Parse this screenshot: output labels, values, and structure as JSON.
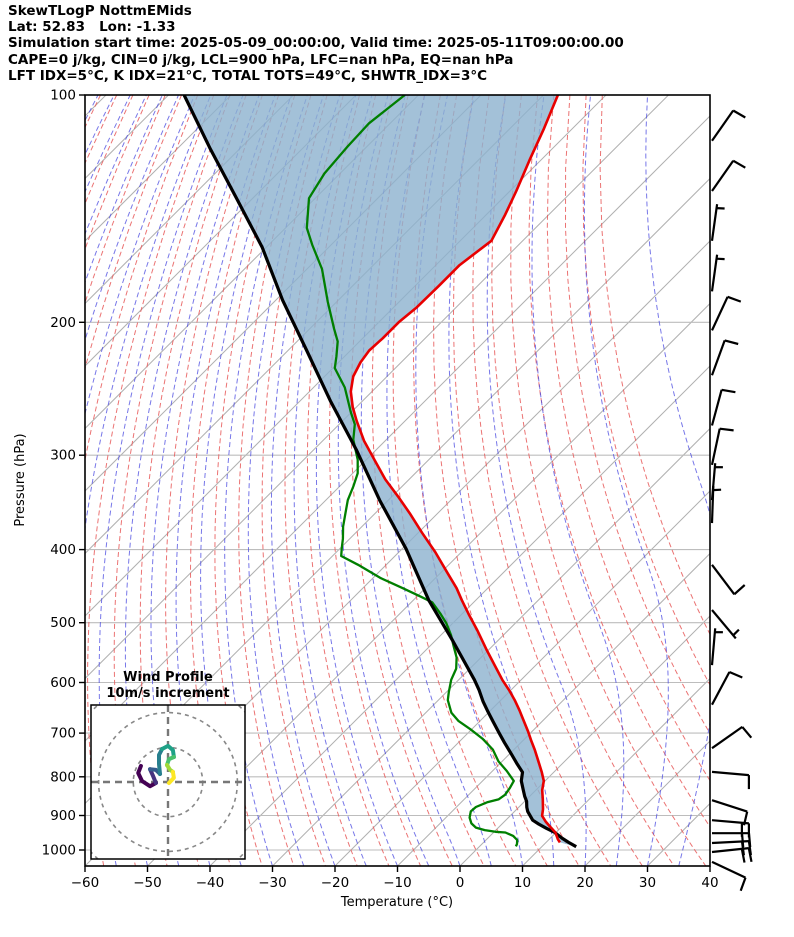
{
  "chart_data": {
    "type": "skewt_logp",
    "header": [
      "SkewTLogP NottmEMids",
      "Lat: 52.83   Lon: -1.33",
      "Simulation start time: 2025-05-09_00:00:00, Valid time: 2025-05-11T09:00:00.00",
      "CAPE=0 j/kg, CIN=0 j/kg, LCL=900 hPa, LFC=nan hPa, EQ=nan hPa",
      "LFT IDX=5°C, K IDX=21°C, TOTAL TOTS=49°C, SHWTR_IDX=3°C"
    ],
    "xlabel": "Temperature (°C)",
    "ylabel": "Pressure (hPa)",
    "x_range": [
      -60,
      40
    ],
    "p_range": [
      100,
      1050
    ],
    "x_ticks": [
      -60,
      -50,
      -40,
      -30,
      -20,
      -10,
      0,
      10,
      20,
      30,
      40
    ],
    "p_ticks": [
      100,
      200,
      300,
      400,
      500,
      600,
      700,
      800,
      900,
      1000
    ],
    "grid": {
      "isotherm_color": "#b0b0b0",
      "isotherm_step_c": 10,
      "pressure_line_color": "#bdbdbd",
      "dry_adiabat_color": "#e85b5b",
      "dry_adiabat_step_c": 5,
      "moist_adiabat_color": "#4a4ae0",
      "moist_adiabat_step_c": 5
    },
    "cape_fill_color": "rgba(140,177,206,0.8)",
    "series": {
      "temperature": {
        "name": "temperature",
        "color": "#e80000",
        "points": [
          [
            100,
            -107.7
          ],
          [
            111,
            -104.5
          ],
          [
            122,
            -101.8
          ],
          [
            134,
            -99
          ],
          [
            144,
            -97
          ],
          [
            156,
            -95
          ],
          [
            168,
            -96.2
          ],
          [
            179,
            -96.2
          ],
          [
            191,
            -96.3
          ],
          [
            200,
            -96.8
          ],
          [
            210,
            -96.8
          ],
          [
            218,
            -97
          ],
          [
            226,
            -96.5
          ],
          [
            236,
            -95.4
          ],
          [
            247,
            -93.4
          ],
          [
            259,
            -90.6
          ],
          [
            270,
            -87.8
          ],
          [
            287,
            -83.4
          ],
          [
            306,
            -78.2
          ],
          [
            323,
            -73.8
          ],
          [
            340,
            -69.1
          ],
          [
            358,
            -64.5
          ],
          [
            380,
            -59.4
          ],
          [
            403,
            -54.2
          ],
          [
            430,
            -48.8
          ],
          [
            450,
            -45
          ],
          [
            467,
            -42.2
          ],
          [
            489,
            -38.6
          ],
          [
            512,
            -34.9
          ],
          [
            544,
            -30.2
          ],
          [
            569,
            -26.6
          ],
          [
            596,
            -22.9
          ],
          [
            614,
            -20.3
          ],
          [
            633,
            -17.8
          ],
          [
            653,
            -15.4
          ],
          [
            671,
            -13.4
          ],
          [
            696,
            -10.7
          ],
          [
            717,
            -8.6
          ],
          [
            737,
            -6.6
          ],
          [
            763,
            -4.2
          ],
          [
            789,
            -1.9
          ],
          [
            810,
            -0.2
          ],
          [
            833,
            1
          ],
          [
            857,
            2.6
          ],
          [
            883,
            4.2
          ],
          [
            901,
            5.1
          ],
          [
            917,
            6.6
          ],
          [
            932,
            8.2
          ],
          [
            948,
            9.9
          ],
          [
            968,
            11.4
          ],
          [
            977,
            12.2
          ]
        ]
      },
      "dewpoint": {
        "name": "dewpoint",
        "color": "#007f00",
        "points": [
          [
            100,
            -132.2
          ],
          [
            109,
            -133.4
          ],
          [
            117,
            -133.1
          ],
          [
            127,
            -132.5
          ],
          [
            137,
            -131
          ],
          [
            150,
            -126.6
          ],
          [
            158,
            -123
          ],
          [
            170,
            -117.6
          ],
          [
            188,
            -111.4
          ],
          [
            204,
            -106.1
          ],
          [
            212,
            -103.5
          ],
          [
            222,
            -101.3
          ],
          [
            230,
            -99.7
          ],
          [
            244,
            -95
          ],
          [
            263,
            -90.1
          ],
          [
            273,
            -87.5
          ],
          [
            286,
            -85.3
          ],
          [
            304,
            -81.4
          ],
          [
            317,
            -79.2
          ],
          [
            330,
            -77.8
          ],
          [
            344,
            -76.5
          ],
          [
            357,
            -74.9
          ],
          [
            373,
            -73
          ],
          [
            387,
            -71.1
          ],
          [
            398,
            -69.8
          ],
          [
            408,
            -68.6
          ],
          [
            419,
            -64.5
          ],
          [
            436,
            -58.9
          ],
          [
            450,
            -53.6
          ],
          [
            462,
            -49.3
          ],
          [
            470,
            -46.6
          ],
          [
            487,
            -43.4
          ],
          [
            501,
            -41
          ],
          [
            519,
            -38.4
          ],
          [
            537,
            -36.2
          ],
          [
            556,
            -33.9
          ],
          [
            575,
            -32.2
          ],
          [
            595,
            -31.2
          ],
          [
            618,
            -29.6
          ],
          [
            633,
            -28.5
          ],
          [
            658,
            -25.9
          ],
          [
            675,
            -23.4
          ],
          [
            692,
            -20.2
          ],
          [
            712,
            -16.8
          ],
          [
            736,
            -13.4
          ],
          [
            763,
            -10.6
          ],
          [
            786,
            -7.7
          ],
          [
            810,
            -5
          ],
          [
            828,
            -4.5
          ],
          [
            845,
            -4.2
          ],
          [
            857,
            -4.5
          ],
          [
            864,
            -5.8
          ],
          [
            877,
            -6.9
          ],
          [
            889,
            -7
          ],
          [
            906,
            -6.2
          ],
          [
            922,
            -5
          ],
          [
            934,
            -3.6
          ],
          [
            941,
            -1.8
          ],
          [
            946,
            0.2
          ],
          [
            948,
            1.9
          ],
          [
            958,
            3.7
          ],
          [
            970,
            5
          ],
          [
            982,
            5.6
          ],
          [
            989,
            5.8
          ]
        ]
      },
      "parcel": {
        "name": "parcel",
        "color": "#000000",
        "points": [
          [
            100,
            -167.5
          ],
          [
            118,
            -154.6
          ],
          [
            137,
            -142.6
          ],
          [
            159,
            -130.7
          ],
          [
            187,
            -118.9
          ],
          [
            218,
            -107
          ],
          [
            254,
            -95.2
          ],
          [
            295,
            -83.2
          ],
          [
            344,
            -71.4
          ],
          [
            399,
            -59.4
          ],
          [
            467,
            -47.5
          ],
          [
            527,
            -37.4
          ],
          [
            595,
            -27.5
          ],
          [
            614,
            -25.1
          ],
          [
            636,
            -22.6
          ],
          [
            656,
            -20.2
          ],
          [
            676,
            -17.8
          ],
          [
            700,
            -15
          ],
          [
            721,
            -12.6
          ],
          [
            747,
            -9.6
          ],
          [
            769,
            -7.2
          ],
          [
            789,
            -5
          ],
          [
            810,
            -3.8
          ],
          [
            832,
            -2.1
          ],
          [
            849,
            -0.8
          ],
          [
            862,
            0.3
          ],
          [
            878,
            1.3
          ],
          [
            889,
            2.1
          ],
          [
            901,
            3.2
          ],
          [
            913,
            4.3
          ],
          [
            924,
            5.9
          ],
          [
            936,
            7.8
          ],
          [
            948,
            9.8
          ],
          [
            964,
            11.8
          ],
          [
            977,
            13.6
          ],
          [
            990,
            15.5
          ]
        ]
      }
    },
    "wind_barbs": [
      {
        "p": 115,
        "dir": 35,
        "full": 1,
        "half": 0
      },
      {
        "p": 134,
        "dir": 35,
        "full": 1,
        "half": 0
      },
      {
        "p": 156,
        "dir": 8,
        "full": 0,
        "half": 1
      },
      {
        "p": 182,
        "dir": 8,
        "full": 0,
        "half": 1
      },
      {
        "p": 205,
        "dir": 25,
        "full": 1,
        "half": 0
      },
      {
        "p": 235,
        "dir": 20,
        "full": 1,
        "half": 0
      },
      {
        "p": 274,
        "dir": 15,
        "full": 1,
        "half": 0
      },
      {
        "p": 309,
        "dir": 12,
        "full": 1,
        "half": 0
      },
      {
        "p": 344,
        "dir": 5,
        "full": 0,
        "half": 1
      },
      {
        "p": 369,
        "dir": 2,
        "full": 0,
        "half": 1
      },
      {
        "p": 419,
        "dir": 143,
        "full": 1,
        "half": 0,
        "toff": -95
      },
      {
        "p": 481,
        "dir": 140,
        "full": 0,
        "half": 1,
        "toff": -95
      },
      {
        "p": 569,
        "dir": 5,
        "full": 0,
        "half": 1
      },
      {
        "p": 642,
        "dir": 28,
        "full": 1,
        "half": 0
      },
      {
        "p": 733,
        "dir": 55,
        "full": 1,
        "half": 0
      },
      {
        "p": 788,
        "dir": 95,
        "full": 1,
        "half": 0
      },
      {
        "p": 859,
        "dir": 108,
        "full": 1,
        "half": 0
      },
      {
        "p": 913,
        "dir": 95,
        "full": 2,
        "half": 0
      },
      {
        "p": 950,
        "dir": 90,
        "full": 2,
        "half": 0
      },
      {
        "p": 979,
        "dir": 87,
        "full": 2,
        "half": 0
      },
      {
        "p": 1006,
        "dir": 84,
        "full": 2,
        "half": 0
      },
      {
        "p": 1037,
        "dir": 115,
        "full": 1,
        "half": 0
      }
    ],
    "hodograph": {
      "title": "Wind Profile",
      "subtitle": "10m/s increment",
      "ring_interval_ms": 10,
      "rings_ms": [
        10,
        20,
        30,
        40
      ],
      "trace_segments": [
        {
          "color": "#440154",
          "uv": [
            [
              -7.8,
              4.6
            ],
            [
              -8.6,
              2.6
            ],
            [
              -7.5,
              0.3
            ],
            [
              -5.2,
              -1.2
            ],
            [
              -3.5,
              -0.3
            ]
          ]
        },
        {
          "color": "#46327e",
          "uv": [
            [
              -3.5,
              -0.3
            ],
            [
              -4.3,
              1.7
            ],
            [
              -5.2,
              3.7
            ]
          ]
        },
        {
          "color": "#365c8d",
          "uv": [
            [
              -5.2,
              3.7
            ],
            [
              -3.5,
              3.5
            ],
            [
              -2.3,
              2.3
            ]
          ]
        },
        {
          "color": "#277f8e",
          "uv": [
            [
              -2.3,
              2.3
            ],
            [
              -2.6,
              5.2
            ],
            [
              -2.6,
              7.8
            ],
            [
              -1.7,
              9.5
            ]
          ]
        },
        {
          "color": "#1fa187",
          "uv": [
            [
              -1.7,
              9.5
            ],
            [
              0,
              10.4
            ],
            [
              1.4,
              9.2
            ],
            [
              1.7,
              7.2
            ]
          ]
        },
        {
          "color": "#4ac16d",
          "uv": [
            [
              1.7,
              7.2
            ],
            [
              0.3,
              6.6
            ],
            [
              -0.3,
              4.9
            ]
          ]
        },
        {
          "color": "#a0da39",
          "uv": [
            [
              -0.3,
              4.9
            ],
            [
              0.6,
              3.5
            ],
            [
              1.4,
              2.9
            ]
          ]
        },
        {
          "color": "#fde725",
          "uv": [
            [
              1.4,
              2.9
            ],
            [
              1.7,
              1.2
            ],
            [
              0.3,
              -0.3
            ]
          ]
        }
      ]
    }
  }
}
